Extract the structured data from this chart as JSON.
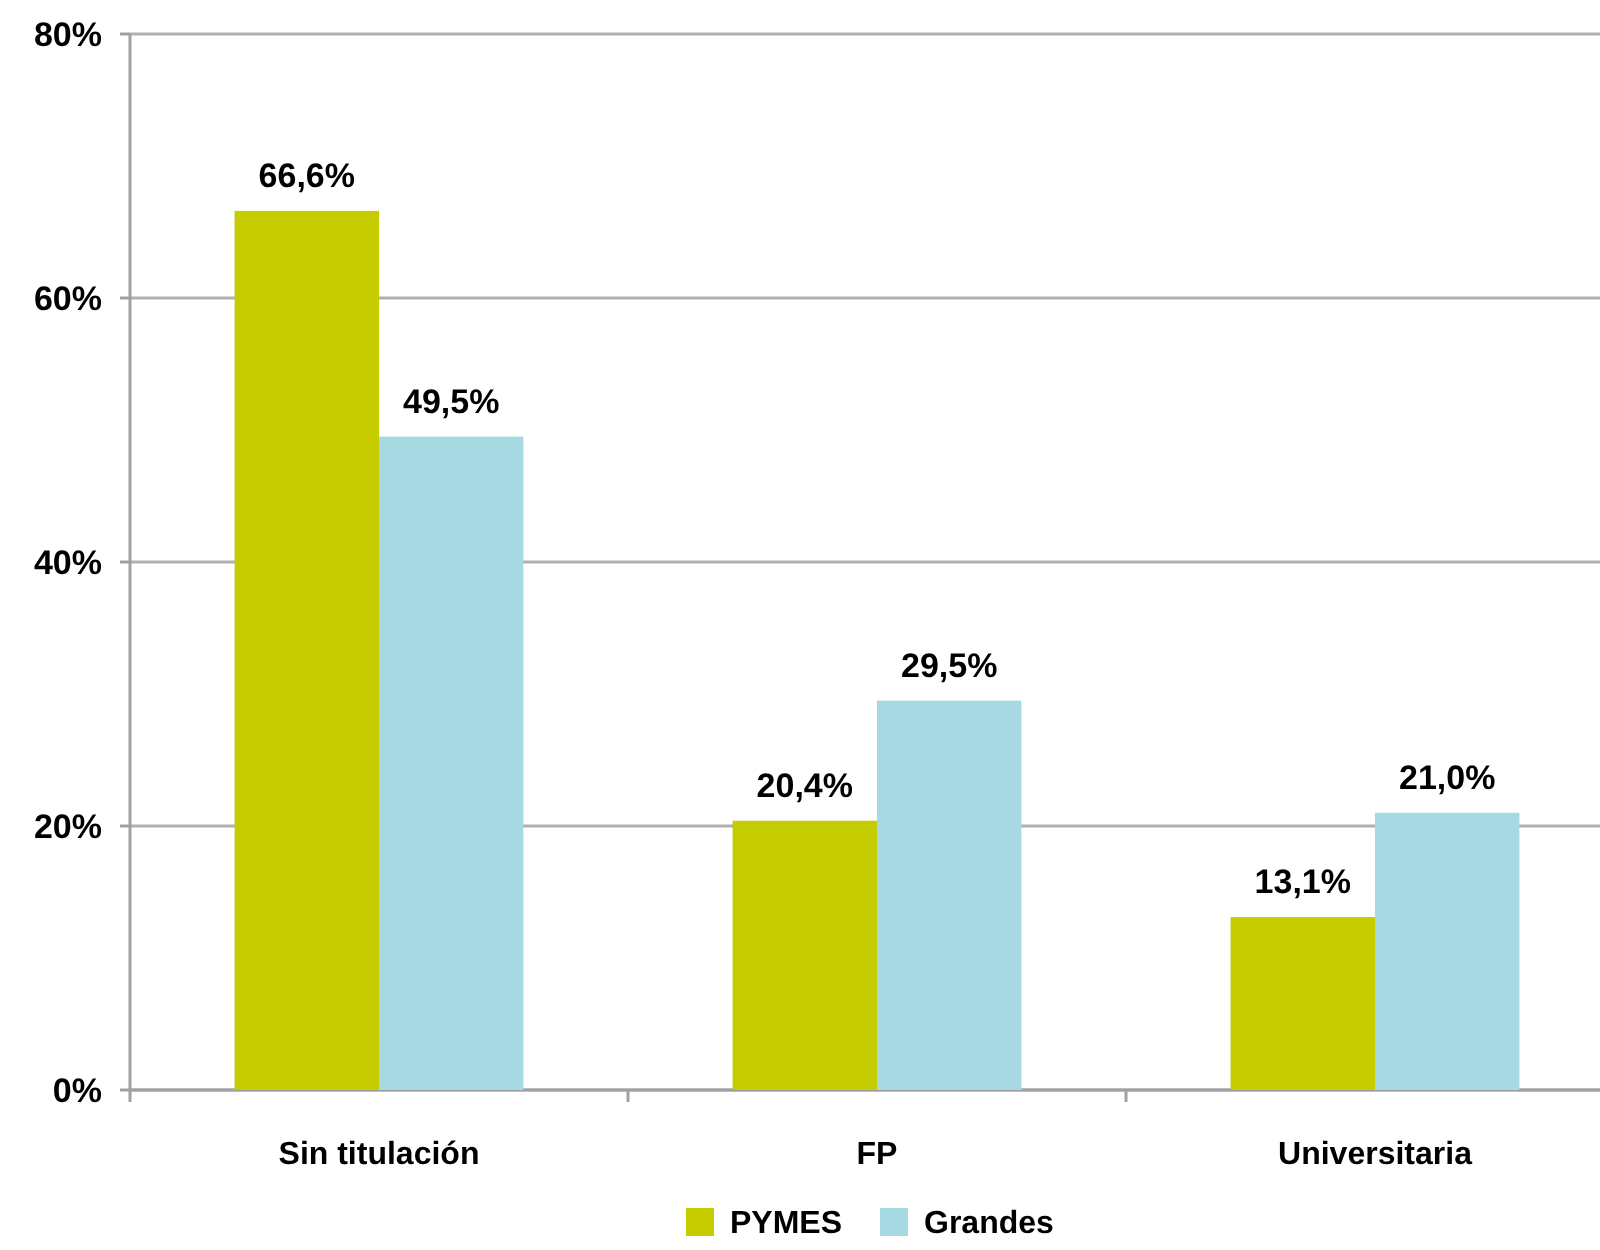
{
  "chart_data": {
    "type": "bar",
    "categories": [
      "Sin titulación",
      "FP",
      "Universitaria"
    ],
    "series": [
      {
        "name": "PYMES",
        "color": "#c5cc00",
        "values": [
          66.6,
          20.4,
          13.1
        ],
        "value_labels": [
          "66,6%",
          "20,4%",
          "13,1%"
        ]
      },
      {
        "name": "Grandes",
        "color": "#a6d9e2",
        "values": [
          49.5,
          29.5,
          21.0
        ],
        "value_labels": [
          "49,5%",
          "29,5%",
          "21,0%"
        ]
      }
    ],
    "ylim": [
      0,
      80
    ],
    "yticks": [
      {
        "value": 0,
        "label": "0%"
      },
      {
        "value": 20,
        "label": "20%"
      },
      {
        "value": 40,
        "label": "40%"
      },
      {
        "value": 60,
        "label": "60%"
      },
      {
        "value": 80,
        "label": "80%"
      }
    ],
    "grid": "y",
    "legend": "bottom"
  }
}
